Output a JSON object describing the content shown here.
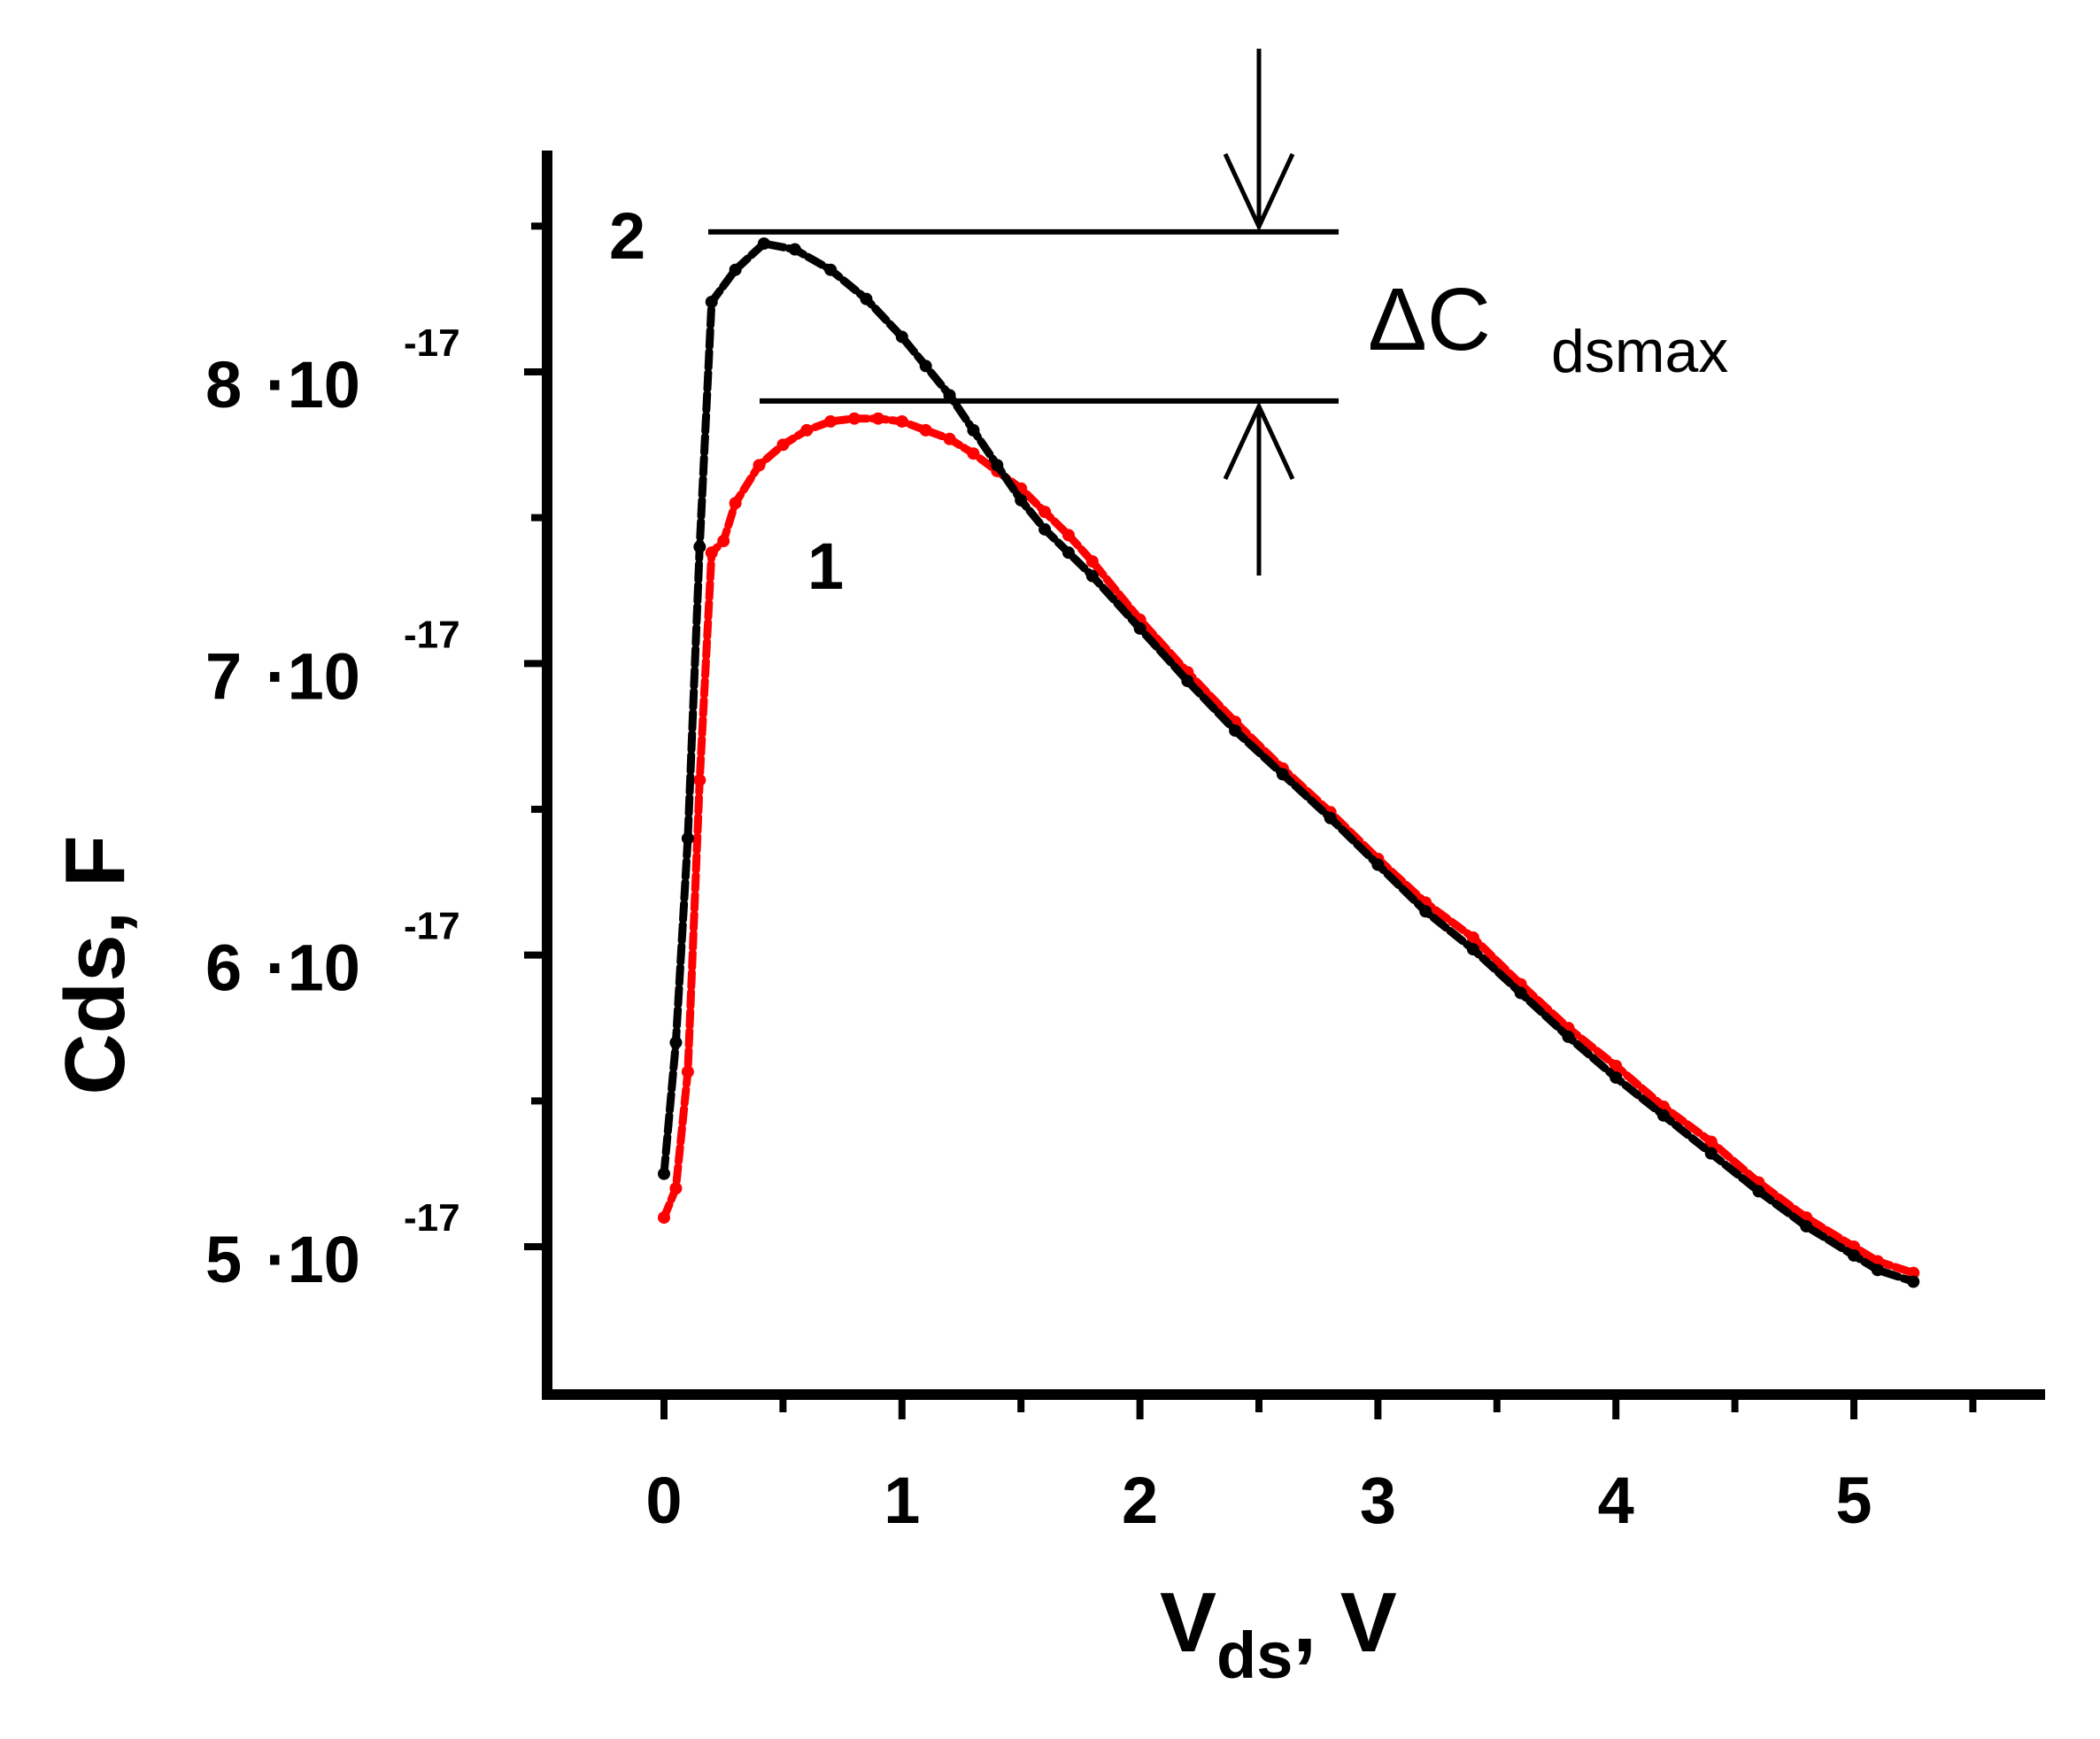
{
  "chart_data": {
    "type": "line",
    "xlabel": "V",
    "xlabel_sub": "ds",
    "xlabel_unit": ", V",
    "ylabel": "Cds, F",
    "xlim": [
      -0.5,
      5.8
    ],
    "ylim": [
      4.5,
      9.4
    ],
    "y_scale_note": "10^-17",
    "x_ticks": [
      {
        "value": 0,
        "label": "0"
      },
      {
        "value": 1,
        "label": "1"
      },
      {
        "value": 2,
        "label": "2"
      },
      {
        "value": 3,
        "label": "3"
      },
      {
        "value": 4,
        "label": "4"
      },
      {
        "value": 5,
        "label": "5"
      }
    ],
    "y_ticks": [
      {
        "value": 5,
        "mant": "5",
        "base": "·10",
        "exp": "-17"
      },
      {
        "value": 6,
        "mant": "6",
        "base": "·10",
        "exp": "-17"
      },
      {
        "value": 7,
        "mant": "7",
        "base": "·10",
        "exp": "-17"
      },
      {
        "value": 8,
        "mant": "8",
        "base": "·10",
        "exp": "-17"
      }
    ],
    "series": [
      {
        "label": "1",
        "color": "#ff0000",
        "points": [
          [
            0.0,
            5.1
          ],
          [
            0.05,
            5.2
          ],
          [
            0.1,
            5.6
          ],
          [
            0.15,
            6.6
          ],
          [
            0.2,
            7.38
          ],
          [
            0.25,
            7.42
          ],
          [
            0.3,
            7.55
          ],
          [
            0.4,
            7.68
          ],
          [
            0.5,
            7.75
          ],
          [
            0.6,
            7.8
          ],
          [
            0.7,
            7.83
          ],
          [
            0.8,
            7.84
          ],
          [
            0.9,
            7.84
          ],
          [
            1.0,
            7.83
          ],
          [
            1.1,
            7.8
          ],
          [
            1.2,
            7.77
          ],
          [
            1.3,
            7.72
          ],
          [
            1.4,
            7.66
          ],
          [
            1.5,
            7.6
          ],
          [
            1.6,
            7.52
          ],
          [
            1.7,
            7.44
          ],
          [
            1.8,
            7.35
          ],
          [
            2.0,
            7.15
          ],
          [
            2.2,
            6.97
          ],
          [
            2.4,
            6.8
          ],
          [
            2.6,
            6.64
          ],
          [
            2.8,
            6.49
          ],
          [
            3.0,
            6.33
          ],
          [
            3.2,
            6.18
          ],
          [
            3.4,
            6.06
          ],
          [
            3.6,
            5.9
          ],
          [
            3.8,
            5.75
          ],
          [
            4.0,
            5.62
          ],
          [
            4.2,
            5.48
          ],
          [
            4.4,
            5.36
          ],
          [
            4.6,
            5.22
          ],
          [
            4.8,
            5.1
          ],
          [
            5.0,
            5.0
          ],
          [
            5.1,
            4.95
          ],
          [
            5.25,
            4.91
          ]
        ]
      },
      {
        "label": "2",
        "color": "#000000",
        "points": [
          [
            0.0,
            5.25
          ],
          [
            0.05,
            5.7
          ],
          [
            0.1,
            6.4
          ],
          [
            0.15,
            7.4
          ],
          [
            0.2,
            8.24
          ],
          [
            0.3,
            8.35
          ],
          [
            0.42,
            8.44
          ],
          [
            0.55,
            8.42
          ],
          [
            0.7,
            8.35
          ],
          [
            0.85,
            8.25
          ],
          [
            1.0,
            8.12
          ],
          [
            1.1,
            8.02
          ],
          [
            1.2,
            7.92
          ],
          [
            1.3,
            7.8
          ],
          [
            1.4,
            7.68
          ],
          [
            1.5,
            7.56
          ],
          [
            1.6,
            7.46
          ],
          [
            1.7,
            7.38
          ],
          [
            1.8,
            7.3
          ],
          [
            2.0,
            7.12
          ],
          [
            2.2,
            6.94
          ],
          [
            2.4,
            6.77
          ],
          [
            2.6,
            6.62
          ],
          [
            2.8,
            6.47
          ],
          [
            3.0,
            6.31
          ],
          [
            3.2,
            6.15
          ],
          [
            3.4,
            6.02
          ],
          [
            3.6,
            5.87
          ],
          [
            3.8,
            5.72
          ],
          [
            4.0,
            5.58
          ],
          [
            4.2,
            5.45
          ],
          [
            4.4,
            5.32
          ],
          [
            4.6,
            5.19
          ],
          [
            4.8,
            5.07
          ],
          [
            5.0,
            4.97
          ],
          [
            5.1,
            4.92
          ],
          [
            5.25,
            4.88
          ]
        ]
      }
    ],
    "annotation": {
      "text": "ΔC",
      "subscript": "dsmax",
      "upper_level": 8.48,
      "lower_level": 7.9,
      "marker_x": 2.5
    }
  }
}
